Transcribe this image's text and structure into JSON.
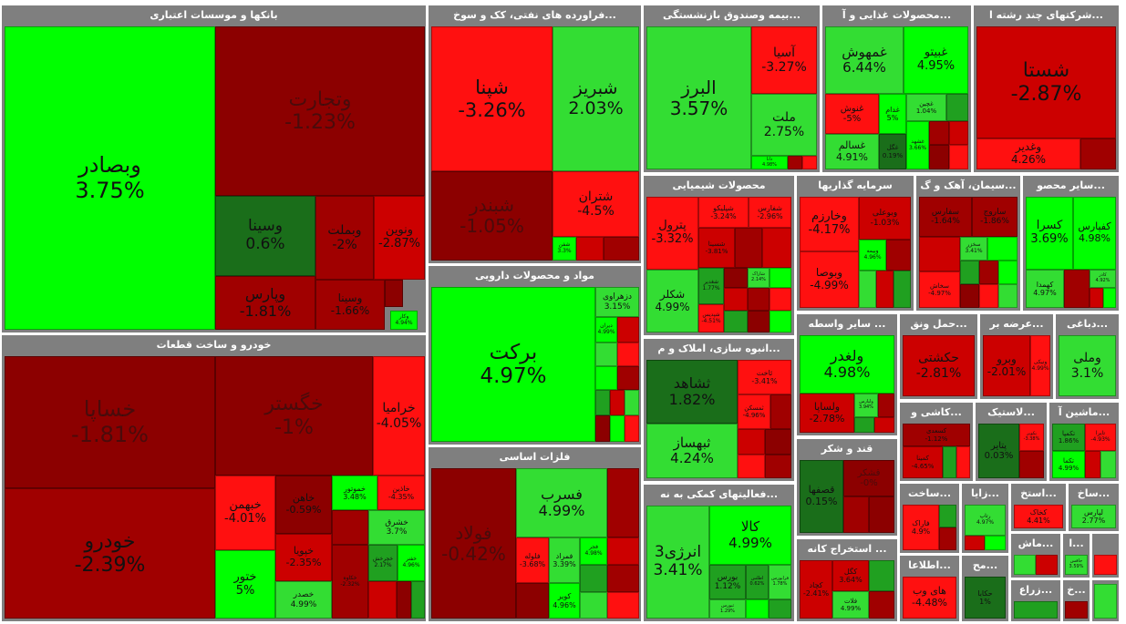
{
  "sections": {
    "banks": {
      "title": "بانکها و موسسات اعتباری",
      "tiles": [
        {
          "sym": "وبصادر",
          "chg": "3.75%"
        },
        {
          "sym": "وتجارت",
          "chg": "-1.23%"
        },
        {
          "sym": "وسینا",
          "chg": "0.6%"
        },
        {
          "sym": "وبملت",
          "chg": "-2%"
        },
        {
          "sym": "ونوین",
          "chg": "-2.87%"
        },
        {
          "sym": "وپارس",
          "chg": "-1.81%"
        },
        {
          "sym": "وسینا",
          "chg": "-1.66%"
        },
        {
          "sym": "وکار",
          "chg": "4.94%"
        }
      ]
    },
    "auto": {
      "title": "خودرو و ساخت قطعات",
      "tiles": [
        {
          "sym": "خساپا",
          "chg": "-1.81%"
        },
        {
          "sym": "خگستر",
          "chg": "-1%"
        },
        {
          "sym": "خراميا",
          "chg": "-4.05%"
        },
        {
          "sym": "خودرو",
          "chg": "-2.39%"
        },
        {
          "sym": "خبهمن",
          "chg": "-4.01%"
        },
        {
          "sym": "ختور",
          "chg": "5%"
        },
        {
          "sym": "خاهن",
          "chg": "-0.59%"
        },
        {
          "sym": "خموتور",
          "chg": "3.48%"
        },
        {
          "sym": "خاذين",
          "chg": "-4.35%"
        },
        {
          "sym": "خشرق",
          "chg": "3.7%"
        },
        {
          "sym": "خپویا",
          "chg": "-2.35%"
        },
        {
          "sym": "خصدر",
          "chg": "4.99%"
        },
        {
          "sym": "خچرخش",
          "chg": "2.17%"
        },
        {
          "sym": "خفنر",
          "chg": "4.96%"
        },
        {
          "sym": "خکاوه",
          "chg": "-2.32%"
        }
      ]
    },
    "oil": {
      "title": "...فراورده های نفتی، کک و سوخ",
      "tiles": [
        {
          "sym": "شپنا",
          "chg": "-3.26%"
        },
        {
          "sym": "شبریز",
          "chg": "2.03%"
        },
        {
          "sym": "شبندر",
          "chg": "-1.05%"
        },
        {
          "sym": "شتران",
          "chg": "-4.5%"
        },
        {
          "sym": "شفن",
          "chg": "3.3%"
        }
      ]
    },
    "pharma": {
      "title": "مواد و محصولات دارویی",
      "tiles": [
        {
          "sym": "برکت",
          "chg": "4.97%"
        },
        {
          "sym": "دزهراوی",
          "chg": "3.15%"
        },
        {
          "sym": "ديران",
          "chg": "4.99%"
        }
      ]
    },
    "metals": {
      "title": "فلزات اساسی",
      "tiles": [
        {
          "sym": "فولاد",
          "chg": "-0.42%"
        },
        {
          "sym": "فسرب",
          "chg": "4.99%"
        },
        {
          "sym": "فلوله",
          "chg": "-3.68%"
        },
        {
          "sym": "فمراد",
          "chg": "3.39%"
        },
        {
          "sym": "کویر",
          "chg": "4.96%"
        },
        {
          "sym": "فجر",
          "chg": "4.98%"
        }
      ]
    },
    "insurance": {
      "title": "...بیمه وصندوق بازنشستگی",
      "tiles": [
        {
          "sym": "البرز",
          "chg": "3.57%"
        },
        {
          "sym": "آسیا",
          "chg": "-3.27%"
        },
        {
          "sym": "ملت",
          "chg": "2.75%"
        },
        {
          "sym": "دانا",
          "chg": "4.98%"
        }
      ]
    },
    "food": {
      "title": "...محصولات غذایی و آ",
      "tiles": [
        {
          "sym": "غمهوش",
          "chg": "6.44%"
        },
        {
          "sym": "غبیتو",
          "chg": "4.95%"
        },
        {
          "sym": "غنوش",
          "chg": "-5%"
        },
        {
          "sym": "غدام",
          "chg": "5%"
        },
        {
          "sym": "غچين",
          "chg": "1.04%"
        },
        {
          "sym": "غسالم",
          "chg": "4.91%"
        },
        {
          "sym": "غگل",
          "chg": "0.19%"
        },
        {
          "sym": "غشهد",
          "chg": "3.66%"
        }
      ]
    },
    "multi": {
      "title": "...شرکتهای چند رشته ا",
      "tiles": [
        {
          "sym": "شستا",
          "chg": "-2.87%"
        },
        {
          "sym": "وغدیر",
          "chg": "4.26%"
        }
      ]
    },
    "chemical": {
      "title": "محصولات شیمیایی",
      "tiles": [
        {
          "sym": "پترول",
          "chg": "-3.32%"
        },
        {
          "sym": "شپلیکو",
          "chg": "-3.24%"
        },
        {
          "sym": "شفارس",
          "chg": "-2.96%"
        },
        {
          "sym": "شسینا",
          "chg": "-3.81%"
        },
        {
          "sym": "شکلر",
          "chg": "4.99%"
        },
        {
          "sym": "شغدیر",
          "chg": "1.77%"
        },
        {
          "sym": "شاراک",
          "chg": "2.14%"
        },
        {
          "sym": "شپدیس",
          "chg": "-4.51%"
        }
      ]
    },
    "investment": {
      "title": "سرمایه گذاریها",
      "tiles": [
        {
          "sym": "وخارزم",
          "chg": "-4.17%"
        },
        {
          "sym": "وبوعلی",
          "chg": "-1.03%"
        },
        {
          "sym": "وبیمه",
          "chg": "4.96%"
        },
        {
          "sym": "وبوصا",
          "chg": "-4.99%"
        }
      ]
    },
    "cement": {
      "title": "...سیمان، آهک و گ",
      "tiles": [
        {
          "sym": "سفارس",
          "chg": "-1.64%"
        },
        {
          "sym": "ساروج",
          "chg": "-1.86%"
        },
        {
          "sym": "سخزر",
          "chg": "3.41%"
        },
        {
          "sym": "سخاش",
          "chg": "-4.97%"
        }
      ]
    },
    "mining": {
      "title": "...سایر محصو",
      "tiles": [
        {
          "sym": "کسرا",
          "chg": "3.69%"
        },
        {
          "sym": "کفپارس",
          "chg": "4.98%"
        },
        {
          "sym": "کهمدا",
          "chg": "4.97%"
        },
        {
          "sym": "کاذر",
          "chg": "4.92%"
        }
      ]
    },
    "realestate": {
      "title": "...انبوه سازی، املاک و م",
      "tiles": [
        {
          "sym": "ثشاهد",
          "chg": "1.82%"
        },
        {
          "sym": "ثاخت",
          "chg": "-3.41%"
        },
        {
          "sym": "ثمسکن",
          "chg": "-4.96%"
        },
        {
          "sym": "ثبهساز",
          "chg": "4.24%"
        }
      ]
    },
    "othermed": {
      "title": "... سایر واسطه",
      "tiles": [
        {
          "sym": "ولغدر",
          "chg": "4.98%"
        },
        {
          "sym": "ولساپا",
          "chg": "-2.78%"
        },
        {
          "sym": "ولپارس",
          "chg": "3.94%"
        }
      ]
    },
    "transport": {
      "title": "...حمل ونق",
      "tiles": [
        {
          "sym": "حکشتی",
          "chg": "-2.81%"
        }
      ]
    },
    "brokerage": {
      "title": "...عرضه بر",
      "tiles": [
        {
          "sym": "وبرو",
          "chg": "-2.01%"
        },
        {
          "sym": "ونیکی",
          "chg": "4.99%"
        }
      ]
    },
    "textile": {
      "title": "...دباغی",
      "tiles": [
        {
          "sym": "وملی",
          "chg": "3.1%"
        }
      ]
    },
    "sugar": {
      "title": "قند و شکر",
      "tiles": [
        {
          "sym": "قصفها",
          "chg": "0.15%"
        },
        {
          "sym": "قشکر",
          "chg": "-0%"
        }
      ]
    },
    "auxfin": {
      "title": "...فعالیتهای کمکی به نه",
      "tiles": [
        {
          "sym": "انرژی3",
          "chg": "3.41%"
        },
        {
          "sym": "کالا",
          "chg": "4.99%"
        },
        {
          "sym": "بورس",
          "chg": "1.12%"
        },
        {
          "sym": "اطلس",
          "chg": "0.62%"
        },
        {
          "sym": "فرابورس",
          "chg": "1.78%"
        },
        {
          "sym": "ثبورس",
          "chg": "1.29%"
        }
      ]
    },
    "extraction": {
      "title": "... استخراج کانه",
      "tiles": [
        {
          "sym": "کگل",
          "chg": "3.64%"
        },
        {
          "sym": "کچاد",
          "chg": "-2.41%"
        },
        {
          "sym": "فلات",
          "chg": "4.99%"
        }
      ]
    },
    "agri": {
      "title": "...کاشی و",
      "tiles": [
        {
          "sym": "کمینا",
          "chg": "-4.65%"
        },
        {
          "sym": "کسعدی",
          "chg": "-1.12%"
        }
      ]
    },
    "plastic": {
      "title": "...لاستیک",
      "tiles": [
        {
          "sym": "پتایر",
          "chg": "0.03%"
        },
        {
          "sym": "پکویر",
          "chg": "-3.38%"
        }
      ]
    },
    "machinery": {
      "title": "...ماشین آ",
      "tiles": [
        {
          "sym": "تکمپا",
          "chg": "1.86%"
        },
        {
          "sym": "تایرا",
          "chg": "-4.93%"
        },
        {
          "sym": "تکما",
          "chg": "4.99%"
        }
      ]
    },
    "build": {
      "title": "...ساخت",
      "tiles": [
        {
          "sym": "فاراک",
          "chg": "4.9%"
        }
      ]
    },
    "tech": {
      "title": "...زایا",
      "tiles": [
        {
          "sym": "رتاپ",
          "chg": "4.97%"
        }
      ]
    },
    "pharma2": {
      "title": "...استخ",
      "tiles": [
        {
          "sym": "کخاک",
          "chg": "4.41%"
        }
      ]
    },
    "prod": {
      "title": "...ساخ",
      "tiles": [
        {
          "sym": "لپارس",
          "chg": "2.77%"
        }
      ]
    },
    "info": {
      "title": "...اطلاعا",
      "tiles": [
        {
          "sym": "های وب",
          "chg": "-4.48%"
        }
      ]
    },
    "misc1": {
      "title": "...مح",
      "tiles": [
        {
          "sym": "حکابا",
          "chg": "1%"
        }
      ]
    },
    "misc2": {
      "title": "...ماش",
      "tiles": [
        {
          "sym": "",
          "chg": ""
        }
      ]
    },
    "misc3": {
      "title": "...زراع",
      "tiles": [
        {
          "sym": "",
          "chg": ""
        }
      ]
    },
    "misc4": {
      "title": "...ا",
      "tiles": [
        {
          "sym": "جافس",
          "chg": "3.59%"
        }
      ]
    },
    "misc5": {
      "title": "...خ",
      "tiles": [
        {
          "sym": "",
          "chg": ""
        }
      ]
    }
  },
  "colors": {
    "strong_green": "#00ff00",
    "green": "#33dd33",
    "mid_green": "#20a020",
    "dark_green": "#1a6e1a",
    "strong_red": "#ff1010",
    "red": "#cc0000",
    "mid_red": "#a00000",
    "dark_red": "#8c0000",
    "header": "#7f7f7f"
  }
}
